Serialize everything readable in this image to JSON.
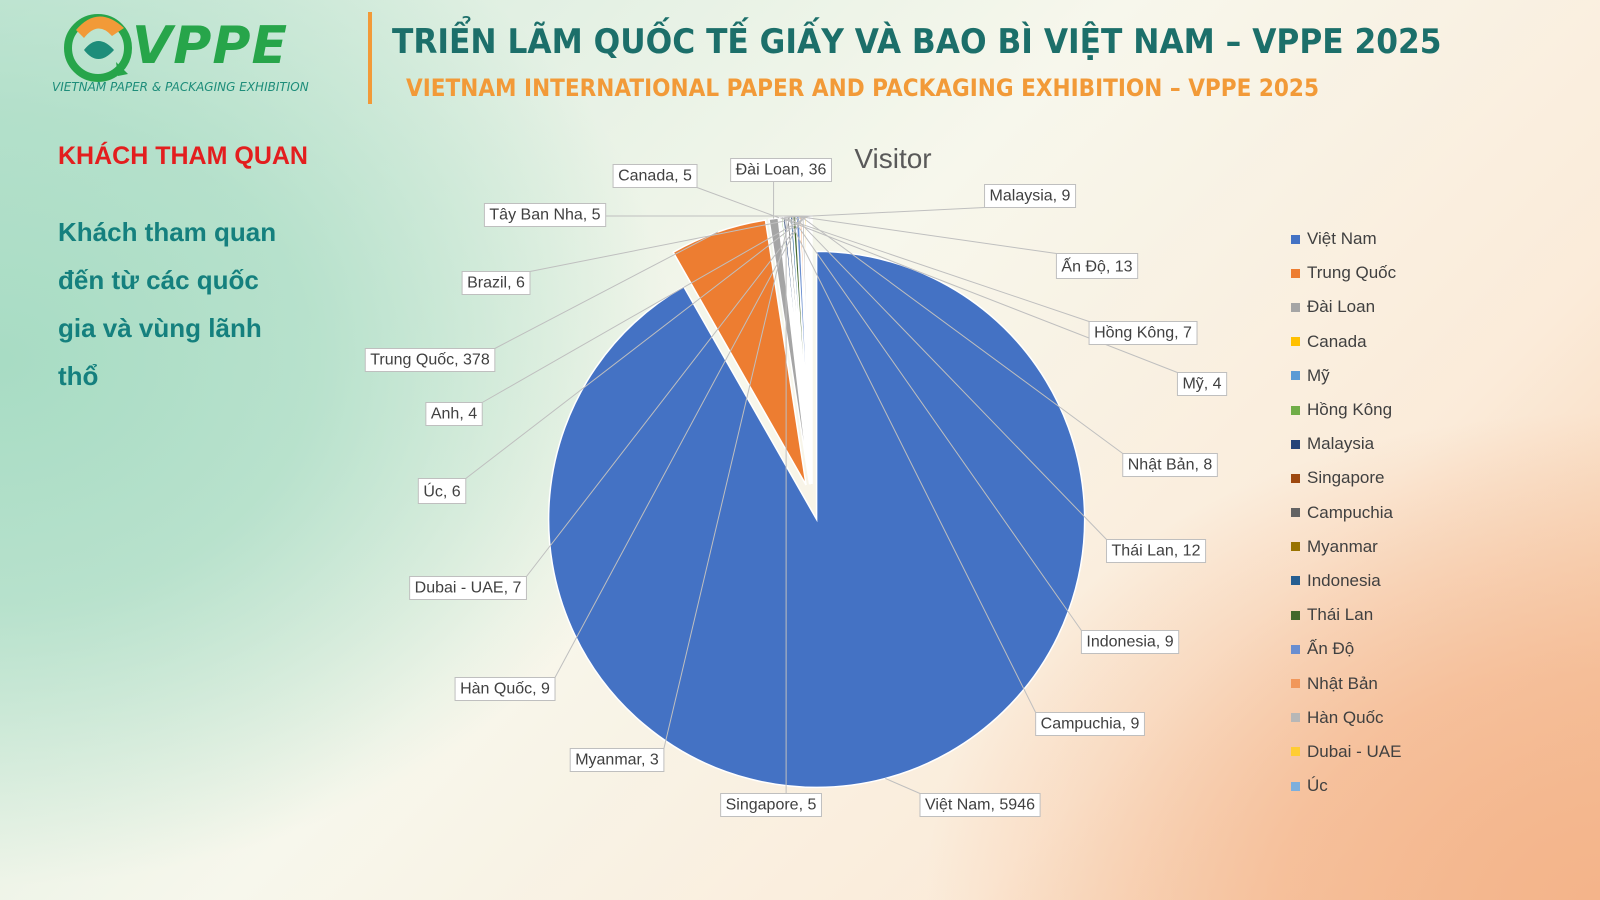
{
  "header": {
    "logo_text": "VPPE",
    "logo_subtitle": "VIETNAM PAPER & PACKAGING EXHIBITION",
    "title_vi": "TRIỂN LÃM QUỐC TẾ GIẤY VÀ BAO BÌ VIỆT NAM – VPPE 2025",
    "title_en": "VIETNAM INTERNATIONAL  PAPER AND PACKAGING EXHIBITION – VPPE 2025"
  },
  "section": {
    "title": "KHÁCH THAM QUAN",
    "description": "Khách tham quan đến từ các quốc gia và vùng lãnh thổ"
  },
  "colors": {
    "title_green": "#1c6f6a",
    "accent_orange": "#f29a38",
    "section_red": "#e31e1e",
    "desc_teal": "#15807e"
  },
  "chart_data": {
    "type": "pie",
    "title": "Visitor",
    "legend_position": "right",
    "data_labels": "category, value",
    "slices": [
      {
        "label": "Việt Nam",
        "value": 5946,
        "color": "#4472c4"
      },
      {
        "label": "Trung Quốc",
        "value": 378,
        "color": "#ed7d31"
      },
      {
        "label": "Đài Loan",
        "value": 36,
        "color": "#a5a5a5"
      },
      {
        "label": "Canada",
        "value": 5,
        "color": "#ffc000"
      },
      {
        "label": "Mỹ",
        "value": 4,
        "color": "#5b9bd5"
      },
      {
        "label": "Hồng Kông",
        "value": 7,
        "color": "#70ad47"
      },
      {
        "label": "Malaysia",
        "value": 9,
        "color": "#264478"
      },
      {
        "label": "Singapore",
        "value": 5,
        "color": "#9e480e"
      },
      {
        "label": "Campuchia",
        "value": 9,
        "color": "#636363"
      },
      {
        "label": "Myanmar",
        "value": 3,
        "color": "#997300"
      },
      {
        "label": "Indonesia",
        "value": 9,
        "color": "#255e91"
      },
      {
        "label": "Thái Lan",
        "value": 12,
        "color": "#43682b"
      },
      {
        "label": "Ấn Độ",
        "value": 13,
        "color": "#698ed0"
      },
      {
        "label": "Nhật Bản",
        "value": 8,
        "color": "#f1975a"
      },
      {
        "label": "Hàn Quốc",
        "value": 9,
        "color": "#b7b7b7"
      },
      {
        "label": "Dubai - UAE",
        "value": 7,
        "color": "#ffcd33"
      },
      {
        "label": "Úc",
        "value": 6,
        "color": "#7cafdd"
      },
      {
        "label": "Anh",
        "value": 4,
        "color": "#8cc168"
      },
      {
        "label": "Brazil",
        "value": 6,
        "color": "#335aa1"
      },
      {
        "label": "Tây Ban Nha",
        "value": 5,
        "color": "#c65911"
      }
    ]
  }
}
